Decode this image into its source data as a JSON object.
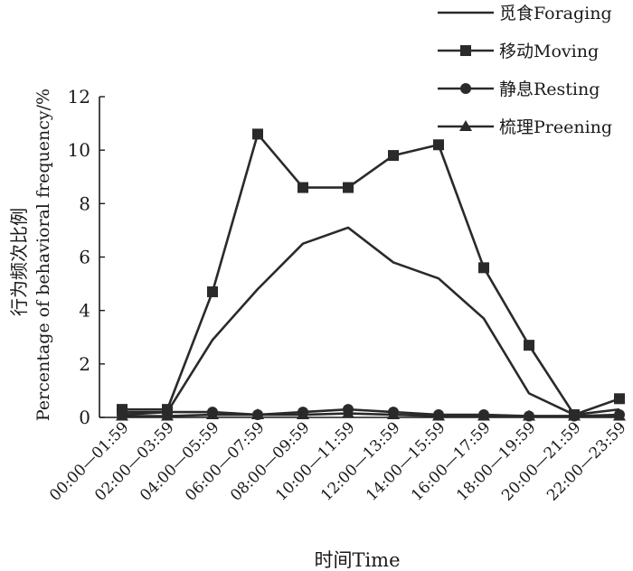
{
  "chart_data": {
    "type": "line",
    "xlabel": "时间Time",
    "ylabel_cn": "行为频次比例",
    "ylabel_en": "Percentage of behavioral frequency/%",
    "ylim": [
      0,
      12
    ],
    "yticks": [
      0,
      2,
      4,
      6,
      8,
      10,
      12
    ],
    "categories": [
      "00:00—01:59",
      "02:00—03:59",
      "04:00—05:59",
      "06:00—07:59",
      "08:00—09:59",
      "10:00—11:59",
      "12:00—13:59",
      "14:00—15:59",
      "16:00—17:59",
      "18:00—19:59",
      "20:00—21:59",
      "22:00—23:59"
    ],
    "series": [
      {
        "name": "觅食Foraging",
        "marker": "none",
        "values": [
          0.2,
          0.2,
          2.9,
          4.8,
          6.5,
          7.1,
          5.8,
          5.2,
          3.7,
          0.9,
          0.1,
          0.3
        ]
      },
      {
        "name": "移动Moving",
        "marker": "square",
        "values": [
          0.3,
          0.3,
          4.7,
          10.6,
          8.6,
          8.6,
          9.8,
          10.2,
          5.6,
          2.7,
          0.1,
          0.7
        ]
      },
      {
        "name": "静息Resting",
        "marker": "circle",
        "values": [
          0.1,
          0.2,
          0.2,
          0.1,
          0.2,
          0.3,
          0.2,
          0.1,
          0.1,
          0.05,
          0.05,
          0.1
        ]
      },
      {
        "name": "梳理Preening",
        "marker": "triangle",
        "values": [
          0.05,
          0.05,
          0.1,
          0.1,
          0.1,
          0.15,
          0.1,
          0.05,
          0.05,
          0.05,
          0.05,
          0.05
        ]
      }
    ],
    "legend_position": "top-right",
    "grid": false
  },
  "colors": {
    "ink": "#2a2a2a"
  }
}
